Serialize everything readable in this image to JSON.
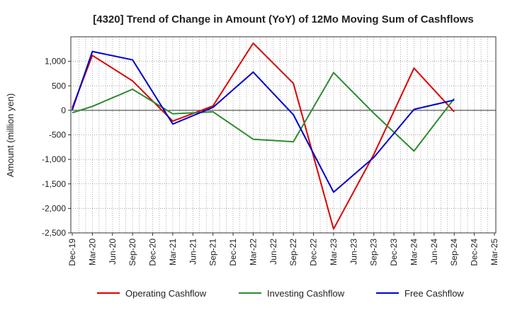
{
  "chart_data": {
    "type": "line",
    "title": "[4320]  Trend of Change in Amount (YoY) of 12Mo Moving Sum of Cashflows",
    "xlabel": "",
    "ylabel": "Amount (million yen)",
    "ylim": [
      -2500,
      1500
    ],
    "yticks": [
      -2500,
      -2000,
      -1500,
      -1000,
      -500,
      0,
      500,
      1000
    ],
    "ytick_labels": [
      "-2,500",
      "-2,000",
      "-1,500",
      "-1,000",
      "-500",
      "0",
      "500",
      "1,000"
    ],
    "categories": [
      "Dec-19",
      "Mar-20",
      "Jun-20",
      "Sep-20",
      "Dec-20",
      "Mar-21",
      "Jun-21",
      "Sep-21",
      "Dec-21",
      "Mar-22",
      "Jun-22",
      "Sep-22",
      "Dec-22",
      "Mar-23",
      "Jun-23",
      "Sep-23",
      "Dec-23",
      "Mar-24",
      "Jun-24",
      "Sep-24",
      "Dec-24",
      "Mar-25"
    ],
    "grid": true,
    "legend_position": "bottom",
    "series": [
      {
        "name": "Operating Cashflow",
        "color": "#dd0000",
        "x": [
          "Dec-19",
          "Mar-20",
          "Sep-20",
          "Mar-21",
          "Sep-21",
          "Mar-22",
          "Sep-22",
          "Mar-23",
          "Sep-23",
          "Mar-24",
          "Sep-24"
        ],
        "values": [
          50,
          1120,
          600,
          -220,
          90,
          1370,
          550,
          -2420,
          -900,
          860,
          -30
        ]
      },
      {
        "name": "Investing Cashflow",
        "color": "#2e8b2e",
        "x": [
          "Dec-19",
          "Mar-20",
          "Sep-20",
          "Mar-21",
          "Sep-21",
          "Mar-22",
          "Sep-22",
          "Mar-23",
          "Sep-23",
          "Mar-24",
          "Sep-24"
        ],
        "values": [
          -50,
          80,
          430,
          -70,
          -30,
          -590,
          -640,
          770,
          -60,
          -830,
          240
        ]
      },
      {
        "name": "Free Cashflow",
        "color": "#0000cc",
        "x": [
          "Dec-19",
          "Mar-20",
          "Sep-20",
          "Mar-21",
          "Sep-21",
          "Mar-22",
          "Sep-22",
          "Mar-23",
          "Sep-23",
          "Mar-24",
          "Sep-24"
        ],
        "values": [
          10,
          1200,
          1030,
          -280,
          60,
          780,
          -90,
          -1670,
          -960,
          20,
          210
        ]
      }
    ]
  }
}
